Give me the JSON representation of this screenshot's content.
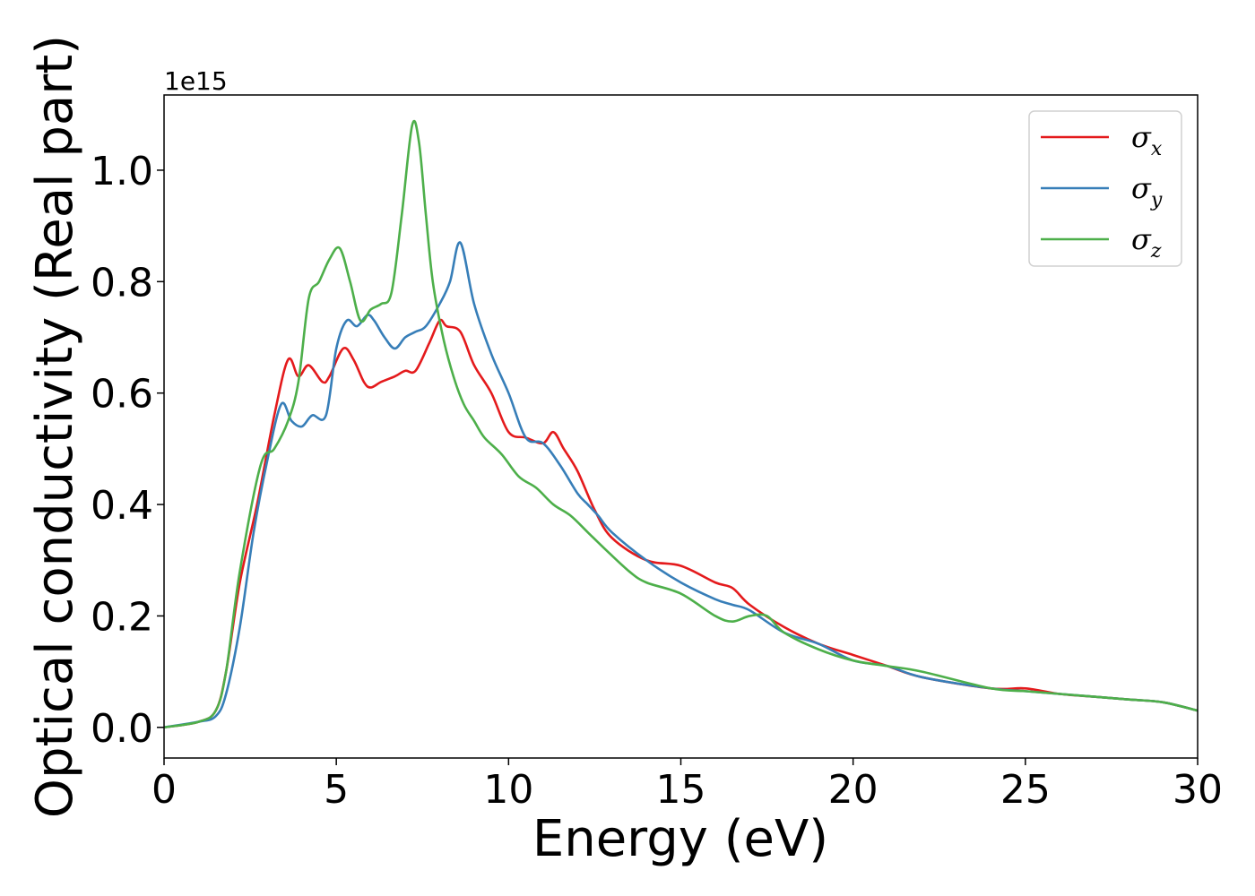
{
  "chart_data": {
    "type": "line",
    "xlabel": "Energy (eV)",
    "ylabel": "Optical conductivity (Real part)",
    "y_offset_label": "1e15",
    "xlim": [
      0,
      30
    ],
    "ylim": [
      -0.055,
      1.135
    ],
    "x_ticks": [
      0,
      5,
      10,
      15,
      20,
      25,
      30
    ],
    "y_ticks": [
      0.0,
      0.2,
      0.4,
      0.6,
      0.8,
      1.0
    ],
    "x_tick_labels": [
      "0",
      "5",
      "10",
      "15",
      "20",
      "25",
      "30"
    ],
    "y_tick_labels": [
      "0.0",
      "0.2",
      "0.4",
      "0.6",
      "0.8",
      "1.0"
    ],
    "grid": false,
    "legend_position": "top-right",
    "series": [
      {
        "name": "σ",
        "subscript": "x",
        "color": "#e41a1c",
        "x": [
          0,
          1,
          1.5,
          1.8,
          2.2,
          2.7,
          3.2,
          3.6,
          3.9,
          4.2,
          4.6,
          4.8,
          5.2,
          5.5,
          5.8,
          6.0,
          6.3,
          6.7,
          7.0,
          7.3,
          7.7,
          8.0,
          8.2,
          8.6,
          9.0,
          9.5,
          10.0,
          10.5,
          11.0,
          11.3,
          11.6,
          12.0,
          12.5,
          13.0,
          14.0,
          15.0,
          16.0,
          16.5,
          17.0,
          18.0,
          19.0,
          20.0,
          21.0,
          22.0,
          24.0,
          25.0,
          26.0,
          27.0,
          28.0,
          29.0,
          30.0
        ],
        "y": [
          0,
          0.01,
          0.03,
          0.1,
          0.26,
          0.4,
          0.56,
          0.66,
          0.63,
          0.65,
          0.62,
          0.63,
          0.68,
          0.66,
          0.62,
          0.61,
          0.62,
          0.63,
          0.64,
          0.64,
          0.69,
          0.73,
          0.72,
          0.71,
          0.65,
          0.6,
          0.53,
          0.52,
          0.51,
          0.53,
          0.5,
          0.46,
          0.39,
          0.34,
          0.3,
          0.29,
          0.26,
          0.25,
          0.22,
          0.18,
          0.15,
          0.13,
          0.11,
          0.09,
          0.07,
          0.07,
          0.06,
          0.055,
          0.05,
          0.045,
          0.03
        ]
      },
      {
        "name": "σ",
        "subscript": "y",
        "color": "#377eb8",
        "x": [
          0,
          1,
          1.5,
          1.8,
          2.2,
          2.6,
          3.0,
          3.4,
          3.7,
          4.0,
          4.3,
          4.7,
          5.0,
          5.3,
          5.6,
          5.9,
          6.1,
          6.4,
          6.7,
          7.0,
          7.3,
          7.6,
          8.0,
          8.3,
          8.6,
          9.0,
          9.5,
          10.0,
          10.5,
          11.0,
          11.5,
          12.0,
          12.3,
          12.6,
          13.0,
          14.0,
          15.0,
          16.0,
          16.5,
          17.0,
          18.0,
          19.0,
          20.0,
          21.0,
          22.0,
          24.0,
          25.0,
          26.0,
          27.0,
          28.0,
          29.0,
          30.0
        ],
        "y": [
          0,
          0.01,
          0.02,
          0.06,
          0.18,
          0.35,
          0.48,
          0.58,
          0.55,
          0.54,
          0.56,
          0.56,
          0.68,
          0.73,
          0.72,
          0.74,
          0.73,
          0.7,
          0.68,
          0.7,
          0.71,
          0.72,
          0.76,
          0.8,
          0.87,
          0.76,
          0.67,
          0.6,
          0.52,
          0.51,
          0.47,
          0.42,
          0.4,
          0.38,
          0.35,
          0.3,
          0.26,
          0.23,
          0.22,
          0.21,
          0.17,
          0.15,
          0.12,
          0.11,
          0.09,
          0.07,
          0.065,
          0.06,
          0.055,
          0.05,
          0.045,
          0.03
        ]
      },
      {
        "name": "σ",
        "subscript": "z",
        "color": "#4daf4a",
        "x": [
          0,
          1,
          1.5,
          1.8,
          2.2,
          2.8,
          3.2,
          3.6,
          3.9,
          4.2,
          4.5,
          4.8,
          5.1,
          5.4,
          5.7,
          6.0,
          6.3,
          6.6,
          6.9,
          7.2,
          7.4,
          7.6,
          7.8,
          8.1,
          8.4,
          8.7,
          9.0,
          9.3,
          9.8,
          10.3,
          10.8,
          11.3,
          11.8,
          12.3,
          12.8,
          13.5,
          14.0,
          15.0,
          16.0,
          16.5,
          17.0,
          17.5,
          18.0,
          19.0,
          20.0,
          21.0,
          22.0,
          24.0,
          25.0,
          26.0,
          27.0,
          28.0,
          29.0,
          30.0
        ],
        "y": [
          0,
          0.01,
          0.03,
          0.1,
          0.28,
          0.47,
          0.5,
          0.55,
          0.62,
          0.77,
          0.8,
          0.84,
          0.86,
          0.8,
          0.73,
          0.75,
          0.76,
          0.78,
          0.92,
          1.08,
          1.05,
          0.92,
          0.8,
          0.7,
          0.63,
          0.58,
          0.55,
          0.52,
          0.49,
          0.45,
          0.43,
          0.4,
          0.38,
          0.35,
          0.32,
          0.28,
          0.26,
          0.24,
          0.2,
          0.19,
          0.2,
          0.2,
          0.17,
          0.14,
          0.12,
          0.11,
          0.1,
          0.07,
          0.065,
          0.06,
          0.055,
          0.05,
          0.045,
          0.03
        ]
      }
    ]
  }
}
